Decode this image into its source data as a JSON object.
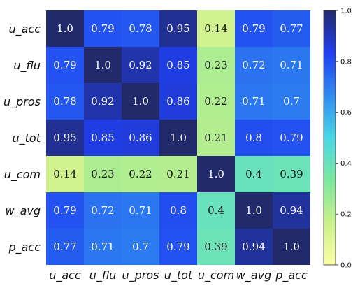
{
  "chart_data": {
    "type": "heatmap",
    "title": "",
    "row_labels": [
      "u_acc",
      "u_flu",
      "u_pros",
      "u_tot",
      "u_com",
      "w_avg",
      "p_acc"
    ],
    "col_labels": [
      "u_acc",
      "u_flu",
      "u_pros",
      "u_tot",
      "u_com",
      "w_avg",
      "p_acc"
    ],
    "values": [
      [
        1.0,
        0.79,
        0.78,
        0.95,
        0.14,
        0.79,
        0.77
      ],
      [
        0.79,
        1.0,
        0.92,
        0.85,
        0.23,
        0.72,
        0.71
      ],
      [
        0.78,
        0.92,
        1.0,
        0.86,
        0.22,
        0.71,
        0.7
      ],
      [
        0.95,
        0.85,
        0.86,
        1.0,
        0.21,
        0.8,
        0.79
      ],
      [
        0.14,
        0.23,
        0.22,
        0.21,
        1.0,
        0.4,
        0.39
      ],
      [
        0.79,
        0.72,
        0.71,
        0.8,
        0.4,
        1.0,
        0.94
      ],
      [
        0.77,
        0.71,
        0.7,
        0.79,
        0.39,
        0.94,
        1.0
      ]
    ],
    "value_labels": [
      [
        "1.0",
        "0.79",
        "0.78",
        "0.95",
        "0.14",
        "0.79",
        "0.77"
      ],
      [
        "0.79",
        "1.0",
        "0.92",
        "0.85",
        "0.23",
        "0.72",
        "0.71"
      ],
      [
        "0.78",
        "0.92",
        "1.0",
        "0.86",
        "0.22",
        "0.71",
        "0.7"
      ],
      [
        "0.95",
        "0.85",
        "0.86",
        "1.0",
        "0.21",
        "0.8",
        "0.79"
      ],
      [
        "0.14",
        "0.23",
        "0.22",
        "0.21",
        "1.0",
        "0.4",
        "0.39"
      ],
      [
        "0.79",
        "0.72",
        "0.71",
        "0.8",
        "0.4",
        "1.0",
        "0.94"
      ],
      [
        "0.77",
        "0.71",
        "0.7",
        "0.79",
        "0.39",
        "0.94",
        "1.0"
      ]
    ],
    "colormap": "YlGnBu-like (pale yellow to dark navy)",
    "colormap_stops": [
      "#fcfea8",
      "#c9f08a",
      "#7de8a0",
      "#4ad7e6",
      "#2f8af0",
      "#1f3ff0",
      "#232a6c"
    ],
    "vmin": 0.0,
    "vmax": 1.0,
    "colorbar": {
      "location": "right",
      "ticks": [
        0.0,
        0.2,
        0.4,
        0.6,
        0.8,
        1.0
      ],
      "tick_labels": [
        "0.0",
        "0.2",
        "0.4",
        "0.6",
        "0.8",
        "1.0"
      ]
    },
    "grid": false,
    "legend": "none"
  }
}
